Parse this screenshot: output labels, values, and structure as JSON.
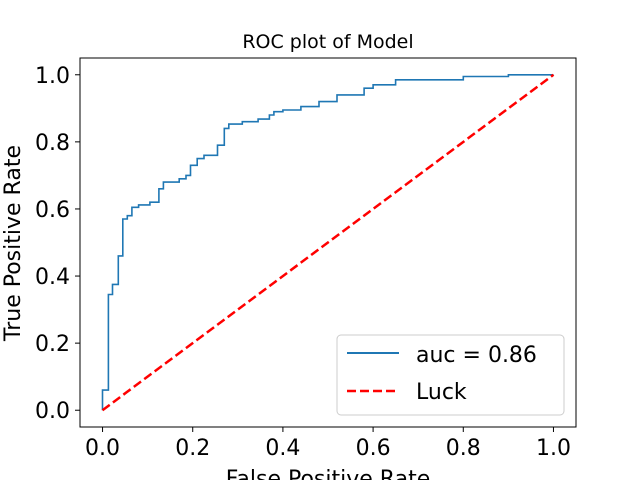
{
  "chart_data": {
    "type": "line",
    "title": "ROC plot of Model",
    "xlabel": "False Positive Rate",
    "ylabel": "True Positive Rate",
    "xlim": [
      -0.05,
      1.05
    ],
    "ylim": [
      -0.05,
      1.05
    ],
    "xticks": [
      "0.0",
      "0.2",
      "0.4",
      "0.6",
      "0.8",
      "1.0"
    ],
    "yticks": [
      "0.0",
      "0.2",
      "0.4",
      "0.6",
      "0.8",
      "1.0"
    ],
    "grid": false,
    "legend_position": "lower-right",
    "series": [
      {
        "name": "auc = 0.86",
        "color": "#1f77b4",
        "style": "step",
        "points": [
          [
            0.0,
            0.0
          ],
          [
            0.0,
            0.06
          ],
          [
            0.013,
            0.06
          ],
          [
            0.013,
            0.345
          ],
          [
            0.022,
            0.345
          ],
          [
            0.022,
            0.375
          ],
          [
            0.035,
            0.375
          ],
          [
            0.035,
            0.46
          ],
          [
            0.045,
            0.46
          ],
          [
            0.045,
            0.57
          ],
          [
            0.055,
            0.57
          ],
          [
            0.055,
            0.58
          ],
          [
            0.065,
            0.58
          ],
          [
            0.065,
            0.605
          ],
          [
            0.08,
            0.605
          ],
          [
            0.08,
            0.612
          ],
          [
            0.105,
            0.612
          ],
          [
            0.105,
            0.62
          ],
          [
            0.125,
            0.62
          ],
          [
            0.125,
            0.66
          ],
          [
            0.135,
            0.66
          ],
          [
            0.135,
            0.68
          ],
          [
            0.17,
            0.68
          ],
          [
            0.17,
            0.69
          ],
          [
            0.185,
            0.69
          ],
          [
            0.185,
            0.7
          ],
          [
            0.195,
            0.7
          ],
          [
            0.195,
            0.73
          ],
          [
            0.21,
            0.73
          ],
          [
            0.21,
            0.75
          ],
          [
            0.225,
            0.75
          ],
          [
            0.225,
            0.76
          ],
          [
            0.255,
            0.76
          ],
          [
            0.255,
            0.79
          ],
          [
            0.27,
            0.79
          ],
          [
            0.27,
            0.84
          ],
          [
            0.28,
            0.84
          ],
          [
            0.28,
            0.853
          ],
          [
            0.31,
            0.853
          ],
          [
            0.31,
            0.86
          ],
          [
            0.345,
            0.86
          ],
          [
            0.345,
            0.868
          ],
          [
            0.37,
            0.868
          ],
          [
            0.37,
            0.88
          ],
          [
            0.38,
            0.88
          ],
          [
            0.38,
            0.89
          ],
          [
            0.4,
            0.89
          ],
          [
            0.4,
            0.895
          ],
          [
            0.44,
            0.895
          ],
          [
            0.44,
            0.905
          ],
          [
            0.48,
            0.905
          ],
          [
            0.48,
            0.92
          ],
          [
            0.52,
            0.92
          ],
          [
            0.52,
            0.94
          ],
          [
            0.58,
            0.94
          ],
          [
            0.58,
            0.96
          ],
          [
            0.6,
            0.96
          ],
          [
            0.6,
            0.97
          ],
          [
            0.65,
            0.97
          ],
          [
            0.65,
            0.985
          ],
          [
            0.8,
            0.985
          ],
          [
            0.8,
            0.995
          ],
          [
            0.9,
            0.995
          ],
          [
            0.9,
            1.0
          ],
          [
            1.0,
            1.0
          ]
        ]
      },
      {
        "name": "Luck",
        "color": "#ff0000",
        "style": "dashed",
        "points": [
          [
            0.0,
            0.0
          ],
          [
            1.0,
            1.0
          ]
        ]
      }
    ]
  }
}
